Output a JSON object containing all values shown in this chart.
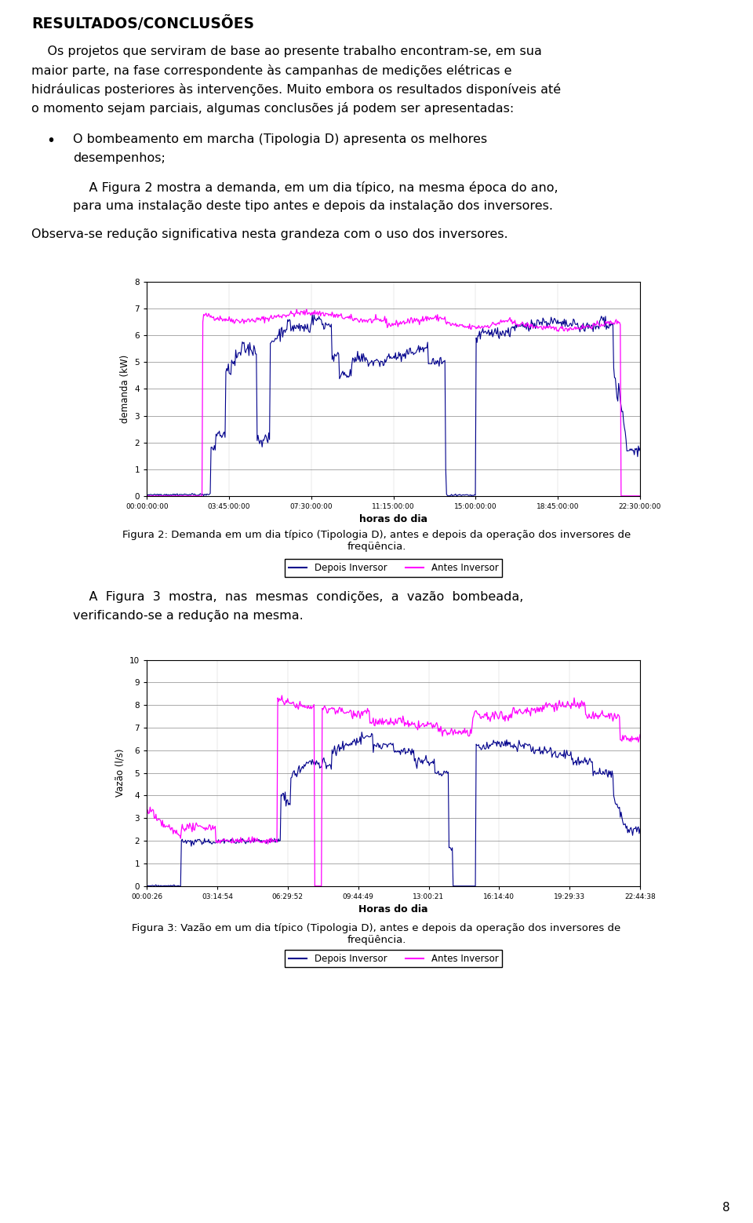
{
  "title": "RESULTADOS/CONCLUSÕES",
  "para1_lines": [
    "    Os projetos que serviram de base ao presente trabalho encontram-se, em sua",
    "maior parte, na fase correspondente às campanhas de medições elétricas e",
    "hidráulicas posteriores às intervenções. Muito embora os resultados disponíveis até",
    "o momento sejam parciais, algumas conclusões já podem ser apresentadas:"
  ],
  "bullet1_lines": [
    "O bombeamento em marcha (Tipologia D) apresenta os melhores",
    "desempenhos;"
  ],
  "para2_lines": [
    "    A Figura 2 mostra a demanda, em um dia típico, na mesma época do ano,",
    "para uma instalação deste tipo antes e depois da instalação dos inversores."
  ],
  "para3": "Observa-se redução significativa nesta grandeza com o uso dos inversores.",
  "fig2_caption": "Figura 2: Demanda em um dia típico (Tipologia D), antes e depois da operação dos inversores de\nfreqüência.",
  "para4_lines": [
    "    A  Figura  3  mostra,  nas  mesmas  condições,  a  vazão  bombeada,",
    "verificando-se a redução na mesma."
  ],
  "fig3_caption": "Figura 3: Vazão em um dia típico (Tipologia D), antes e depois da operação dos inversores de\nfreqüência.",
  "page_number": "8",
  "fig2_ylabel": "demanda (kW)",
  "fig2_xlabel": "horas do dia",
  "fig2_ylim": [
    0,
    8
  ],
  "fig2_yticks": [
    0,
    1,
    2,
    3,
    4,
    5,
    6,
    7,
    8
  ],
  "fig2_xtick_labels": [
    "00:00:00:00",
    "03:45:00:00",
    "07:30:00:00",
    "11:15:00:00",
    "15:00:00:00",
    "18:45:00:00",
    "22:30:00:00"
  ],
  "fig3_ylabel": "Vazão (l/s)",
  "fig3_xlabel": "Horas do dia",
  "fig3_ylim": [
    0,
    10
  ],
  "fig3_yticks": [
    0,
    1,
    2,
    3,
    4,
    5,
    6,
    7,
    8,
    9,
    10
  ],
  "fig3_xtick_labels": [
    "00:00:26",
    "03:14:54",
    "06:29:52",
    "09:44:49",
    "13:00:21",
    "16:14:40",
    "19:29:33",
    "22:44:38"
  ],
  "legend_depois": "Depois Inversor",
  "legend_antes": "Antes Inversor",
  "color_depois": "#00008B",
  "color_antes": "#FF00FF",
  "bg_color": "#FFFFFF",
  "text_color": "#000000"
}
